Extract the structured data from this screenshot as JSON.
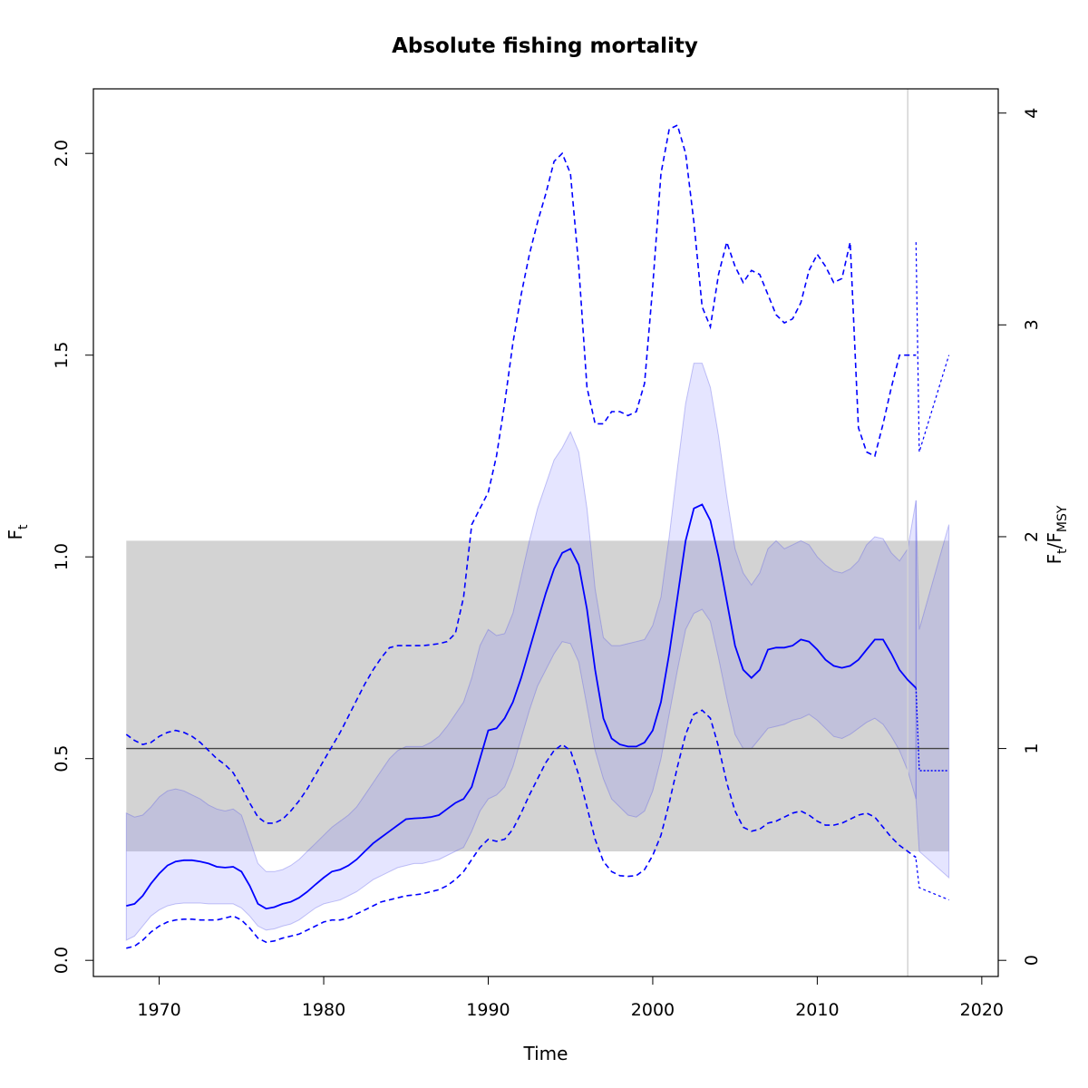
{
  "chart_data": {
    "type": "line",
    "title": "Absolute fishing mortality",
    "xlabel": "Time",
    "ylabel_main": "F",
    "ylabel_sub": "t",
    "ylabel2_main": "F",
    "ylabel2_sub1": "t",
    "ylabel2_slash": "/F",
    "ylabel2_sub2": "MSY",
    "xlim": [
      1966,
      2021
    ],
    "ylim": [
      -0.04,
      2.16
    ],
    "x_ticks": [
      1970,
      1980,
      1990,
      2000,
      2010,
      2020
    ],
    "y_ticks": [
      0.0,
      0.5,
      1.0,
      1.5,
      2.0
    ],
    "y_tick_labels": [
      "0.0",
      "0.5",
      "1.0",
      "1.5",
      "2.0"
    ],
    "y2_ticks": [
      0,
      1,
      2,
      3,
      4
    ],
    "fmsy": 0.525,
    "fmsy_band": [
      0.27,
      1.04
    ],
    "band_x": [
      1968,
      2018
    ],
    "data_end_vline": 2015.5,
    "grid": false,
    "colors": {
      "estimate": "#0000ff",
      "ci_fill": "rgba(110,110,255,0.18)",
      "ci_edge": "rgba(90,90,230,0.35)",
      "fmsy_band": "#d3d3d3",
      "fmsy_line": "#444444",
      "vline": "#d3d3d3"
    },
    "series": [
      {
        "role": "estimate",
        "x": [
          1968,
          1968.5,
          1969,
          1969.5,
          1970,
          1970.5,
          1971,
          1971.5,
          1972,
          1972.5,
          1973,
          1973.5,
          1974,
          1974.5,
          1975,
          1975.5,
          1976,
          1976.5,
          1977,
          1977.5,
          1978,
          1978.5,
          1979,
          1979.5,
          1980,
          1980.5,
          1981,
          1981.5,
          1982,
          1982.5,
          1983,
          1983.5,
          1984,
          1984.5,
          1985,
          1985.5,
          1986,
          1986.5,
          1987,
          1987.5,
          1988,
          1988.5,
          1989,
          1989.5,
          1990,
          1990.5,
          1991,
          1991.5,
          1992,
          1992.5,
          1993,
          1993.5,
          1994,
          1994.5,
          1995,
          1995.5,
          1996,
          1996.5,
          1997,
          1997.5,
          1998,
          1998.5,
          1999,
          1999.5,
          2000,
          2000.5,
          2001,
          2001.5,
          2002,
          2002.5,
          2003,
          2003.5,
          2004,
          2004.5,
          2005,
          2005.5,
          2006,
          2006.5,
          2007,
          2007.5,
          2008,
          2008.5,
          2009,
          2009.5,
          2010,
          2010.5,
          2011,
          2011.5,
          2012,
          2012.5,
          2013,
          2013.5,
          2014,
          2014.5,
          2015,
          2015.5,
          2016
        ],
        "values": [
          0.135,
          0.14,
          0.16,
          0.19,
          0.215,
          0.235,
          0.245,
          0.248,
          0.248,
          0.245,
          0.24,
          0.232,
          0.23,
          0.232,
          0.22,
          0.185,
          0.14,
          0.128,
          0.132,
          0.14,
          0.145,
          0.155,
          0.17,
          0.188,
          0.205,
          0.22,
          0.225,
          0.235,
          0.25,
          0.27,
          0.29,
          0.305,
          0.32,
          0.335,
          0.35,
          0.352,
          0.353,
          0.355,
          0.36,
          0.375,
          0.39,
          0.4,
          0.43,
          0.5,
          0.57,
          0.575,
          0.6,
          0.64,
          0.7,
          0.77,
          0.84,
          0.91,
          0.97,
          1.01,
          1.02,
          0.98,
          0.87,
          0.72,
          0.6,
          0.55,
          0.535,
          0.53,
          0.53,
          0.54,
          0.57,
          0.64,
          0.76,
          0.9,
          1.04,
          1.12,
          1.13,
          1.09,
          1.0,
          0.89,
          0.78,
          0.72,
          0.7,
          0.72,
          0.77,
          0.775,
          0.775,
          0.78,
          0.795,
          0.79,
          0.77,
          0.745,
          0.73,
          0.725,
          0.73,
          0.745,
          0.77,
          0.795,
          0.795,
          0.76,
          0.72,
          0.695,
          0.675
        ]
      },
      {
        "role": "ci_upper",
        "x": [
          1968,
          1968.5,
          1969,
          1969.5,
          1970,
          1970.5,
          1971,
          1971.5,
          1972,
          1972.5,
          1973,
          1973.5,
          1974,
          1974.5,
          1975,
          1975.5,
          1976,
          1976.5,
          1977,
          1977.5,
          1978,
          1978.5,
          1979,
          1979.5,
          1980,
          1980.5,
          1981,
          1981.5,
          1982,
          1982.5,
          1983,
          1983.5,
          1984,
          1984.5,
          1985,
          1985.5,
          1986,
          1986.5,
          1987,
          1987.5,
          1988,
          1988.5,
          1989,
          1989.5,
          1990,
          1990.5,
          1991,
          1991.5,
          1992,
          1992.5,
          1993,
          1993.5,
          1994,
          1994.5,
          1995,
          1995.5,
          1996,
          1996.5,
          1997,
          1997.5,
          1998,
          1998.5,
          1999,
          1999.5,
          2000,
          2000.5,
          2001,
          2001.5,
          2002,
          2002.5,
          2003,
          2003.5,
          2004,
          2004.5,
          2005,
          2005.5,
          2006,
          2006.5,
          2007,
          2007.5,
          2008,
          2008.5,
          2009,
          2009.5,
          2010,
          2010.5,
          2011,
          2011.5,
          2012,
          2012.5,
          2013,
          2013.5,
          2014,
          2014.5,
          2015,
          2015.5,
          2016
        ],
        "values": [
          0.365,
          0.355,
          0.36,
          0.38,
          0.405,
          0.42,
          0.425,
          0.42,
          0.41,
          0.4,
          0.385,
          0.375,
          0.37,
          0.375,
          0.36,
          0.3,
          0.24,
          0.22,
          0.22,
          0.225,
          0.235,
          0.25,
          0.27,
          0.29,
          0.31,
          0.33,
          0.345,
          0.36,
          0.38,
          0.41,
          0.44,
          0.47,
          0.5,
          0.52,
          0.53,
          0.53,
          0.53,
          0.54,
          0.555,
          0.58,
          0.61,
          0.64,
          0.7,
          0.78,
          0.82,
          0.805,
          0.81,
          0.86,
          0.95,
          1.04,
          1.12,
          1.18,
          1.24,
          1.27,
          1.31,
          1.26,
          1.12,
          0.92,
          0.8,
          0.78,
          0.78,
          0.785,
          0.79,
          0.795,
          0.83,
          0.9,
          1.05,
          1.22,
          1.38,
          1.48,
          1.48,
          1.42,
          1.3,
          1.15,
          1.02,
          0.96,
          0.93,
          0.96,
          1.02,
          1.04,
          1.02,
          1.03,
          1.04,
          1.03,
          1.0,
          0.98,
          0.965,
          0.96,
          0.97,
          0.99,
          1.03,
          1.05,
          1.045,
          1.01,
          0.99,
          1.02,
          1.14
        ]
      },
      {
        "role": "ci_lower",
        "x": [
          1968,
          1968.5,
          1969,
          1969.5,
          1970,
          1970.5,
          1971,
          1971.5,
          1972,
          1972.5,
          1973,
          1973.5,
          1974,
          1974.5,
          1975,
          1975.5,
          1976,
          1976.5,
          1977,
          1977.5,
          1978,
          1978.5,
          1979,
          1979.5,
          1980,
          1980.5,
          1981,
          1981.5,
          1982,
          1982.5,
          1983,
          1983.5,
          1984,
          1984.5,
          1985,
          1985.5,
          1986,
          1986.5,
          1987,
          1987.5,
          1988,
          1988.5,
          1989,
          1989.5,
          1990,
          1990.5,
          1991,
          1991.5,
          1992,
          1992.5,
          1993,
          1993.5,
          1994,
          1994.5,
          1995,
          1995.5,
          1996,
          1996.5,
          1997,
          1997.5,
          1998,
          1998.5,
          1999,
          1999.5,
          2000,
          2000.5,
          2001,
          2001.5,
          2002,
          2002.5,
          2003,
          2003.5,
          2004,
          2004.5,
          2005,
          2005.5,
          2006,
          2006.5,
          2007,
          2007.5,
          2008,
          2008.5,
          2009,
          2009.5,
          2010,
          2010.5,
          2011,
          2011.5,
          2012,
          2012.5,
          2013,
          2013.5,
          2014,
          2014.5,
          2015,
          2015.5,
          2016
        ],
        "values": [
          0.05,
          0.06,
          0.085,
          0.11,
          0.125,
          0.135,
          0.14,
          0.142,
          0.142,
          0.142,
          0.14,
          0.14,
          0.14,
          0.14,
          0.13,
          0.11,
          0.085,
          0.075,
          0.078,
          0.085,
          0.09,
          0.1,
          0.115,
          0.13,
          0.14,
          0.145,
          0.15,
          0.16,
          0.17,
          0.185,
          0.2,
          0.21,
          0.22,
          0.23,
          0.235,
          0.24,
          0.24,
          0.245,
          0.25,
          0.26,
          0.27,
          0.28,
          0.32,
          0.37,
          0.4,
          0.41,
          0.43,
          0.48,
          0.55,
          0.62,
          0.68,
          0.72,
          0.76,
          0.79,
          0.785,
          0.74,
          0.63,
          0.52,
          0.45,
          0.4,
          0.38,
          0.36,
          0.355,
          0.37,
          0.42,
          0.5,
          0.61,
          0.72,
          0.82,
          0.86,
          0.87,
          0.84,
          0.75,
          0.65,
          0.56,
          0.525,
          0.525,
          0.55,
          0.575,
          0.58,
          0.585,
          0.595,
          0.6,
          0.61,
          0.595,
          0.575,
          0.555,
          0.55,
          0.56,
          0.575,
          0.59,
          0.6,
          0.585,
          0.555,
          0.52,
          0.47,
          0.4
        ]
      },
      {
        "role": "upper_dashed",
        "x": [
          1968,
          1968.5,
          1969,
          1969.5,
          1970,
          1970.5,
          1971,
          1971.5,
          1972,
          1972.5,
          1973,
          1973.5,
          1974,
          1974.5,
          1975,
          1975.5,
          1976,
          1976.5,
          1977,
          1977.5,
          1978,
          1978.5,
          1979,
          1979.5,
          1980,
          1980.5,
          1981,
          1981.5,
          1982,
          1982.5,
          1983,
          1983.5,
          1984,
          1984.5,
          1985,
          1985.5,
          1986,
          1986.5,
          1987,
          1987.5,
          1988,
          1988.5,
          1989,
          1989.5,
          1990,
          1990.5,
          1991,
          1991.5,
          1992,
          1992.5,
          1993,
          1993.5,
          1994,
          1994.5,
          1995,
          1995.5,
          1996,
          1996.5,
          1997,
          1997.5,
          1998,
          1998.5,
          1999,
          1999.5,
          2000,
          2000.5,
          2001,
          2001.5,
          2002,
          2002.5,
          2003,
          2003.5,
          2004,
          2004.5,
          2005,
          2005.5,
          2006,
          2006.5,
          2007,
          2007.5,
          2008,
          2008.5,
          2009,
          2009.5,
          2010,
          2010.5,
          2011,
          2011.5,
          2012,
          2012.5,
          2013,
          2013.5,
          2014,
          2014.5,
          2015,
          2015.5,
          2016
        ],
        "values": [
          0.56,
          0.545,
          0.535,
          0.54,
          0.555,
          0.565,
          0.57,
          0.565,
          0.555,
          0.54,
          0.52,
          0.5,
          0.485,
          0.465,
          0.43,
          0.39,
          0.355,
          0.34,
          0.34,
          0.35,
          0.37,
          0.395,
          0.425,
          0.46,
          0.495,
          0.53,
          0.565,
          0.605,
          0.645,
          0.685,
          0.72,
          0.75,
          0.775,
          0.78,
          0.78,
          0.78,
          0.78,
          0.782,
          0.785,
          0.79,
          0.81,
          0.9,
          1.08,
          1.12,
          1.16,
          1.25,
          1.38,
          1.53,
          1.65,
          1.75,
          1.83,
          1.9,
          1.98,
          2.0,
          1.95,
          1.72,
          1.42,
          1.33,
          1.33,
          1.36,
          1.36,
          1.35,
          1.36,
          1.43,
          1.67,
          1.95,
          2.06,
          2.07,
          2.0,
          1.83,
          1.62,
          1.57,
          1.7,
          1.78,
          1.72,
          1.68,
          1.71,
          1.7,
          1.65,
          1.6,
          1.58,
          1.59,
          1.63,
          1.71,
          1.75,
          1.72,
          1.68,
          1.69,
          1.78,
          1.32,
          1.26,
          1.25,
          1.33,
          1.42,
          1.5,
          1.5,
          1.5
        ]
      },
      {
        "role": "lower_dashed",
        "x": [
          1968,
          1968.5,
          1969,
          1969.5,
          1970,
          1970.5,
          1971,
          1971.5,
          1972,
          1972.5,
          1973,
          1973.5,
          1974,
          1974.5,
          1975,
          1975.5,
          1976,
          1976.5,
          1977,
          1977.5,
          1978,
          1978.5,
          1979,
          1979.5,
          1980,
          1980.5,
          1981,
          1981.5,
          1982,
          1982.5,
          1983,
          1983.5,
          1984,
          1984.5,
          1985,
          1985.5,
          1986,
          1986.5,
          1987,
          1987.5,
          1988,
          1988.5,
          1989,
          1989.5,
          1990,
          1990.5,
          1991,
          1991.5,
          1992,
          1992.5,
          1993,
          1993.5,
          1994,
          1994.5,
          1995,
          1995.5,
          1996,
          1996.5,
          1997,
          1997.5,
          1998,
          1998.5,
          1999,
          1999.5,
          2000,
          2000.5,
          2001,
          2001.5,
          2002,
          2002.5,
          2003,
          2003.5,
          2004,
          2004.5,
          2005,
          2005.5,
          2006,
          2006.5,
          2007,
          2007.5,
          2008,
          2008.5,
          2009,
          2009.5,
          2010,
          2010.5,
          2011,
          2011.5,
          2012,
          2012.5,
          2013,
          2013.5,
          2014,
          2014.5,
          2015,
          2015.5,
          2016
        ],
        "values": [
          0.03,
          0.035,
          0.05,
          0.07,
          0.085,
          0.095,
          0.1,
          0.102,
          0.102,
          0.1,
          0.1,
          0.1,
          0.105,
          0.11,
          0.1,
          0.08,
          0.055,
          0.045,
          0.048,
          0.055,
          0.06,
          0.065,
          0.075,
          0.085,
          0.095,
          0.1,
          0.1,
          0.105,
          0.115,
          0.125,
          0.135,
          0.145,
          0.15,
          0.155,
          0.16,
          0.162,
          0.165,
          0.17,
          0.175,
          0.185,
          0.2,
          0.22,
          0.25,
          0.28,
          0.3,
          0.295,
          0.3,
          0.325,
          0.365,
          0.41,
          0.45,
          0.49,
          0.52,
          0.535,
          0.52,
          0.46,
          0.38,
          0.3,
          0.245,
          0.22,
          0.21,
          0.208,
          0.21,
          0.225,
          0.26,
          0.31,
          0.39,
          0.48,
          0.56,
          0.61,
          0.62,
          0.6,
          0.53,
          0.44,
          0.37,
          0.33,
          0.32,
          0.325,
          0.34,
          0.345,
          0.355,
          0.365,
          0.37,
          0.36,
          0.345,
          0.335,
          0.335,
          0.34,
          0.35,
          0.36,
          0.365,
          0.355,
          0.33,
          0.305,
          0.285,
          0.27,
          0.255
        ]
      },
      {
        "role": "forecast_estimate",
        "x": [
          2016,
          2016.2,
          2018
        ],
        "values": [
          0.675,
          0.47,
          0.47
        ]
      },
      {
        "role": "forecast_upper_dashed",
        "x": [
          2016,
          2016.2,
          2018
        ],
        "values": [
          1.78,
          1.26,
          1.5
        ]
      },
      {
        "role": "forecast_lower_dashed",
        "x": [
          2016,
          2016.2,
          2018
        ],
        "values": [
          0.25,
          0.18,
          0.15
        ]
      },
      {
        "role": "forecast_ci",
        "x": [
          2016,
          2016.2,
          2018
        ],
        "upper": [
          1.14,
          0.82,
          1.08
        ],
        "lower": [
          0.4,
          0.27,
          0.205
        ]
      }
    ]
  }
}
